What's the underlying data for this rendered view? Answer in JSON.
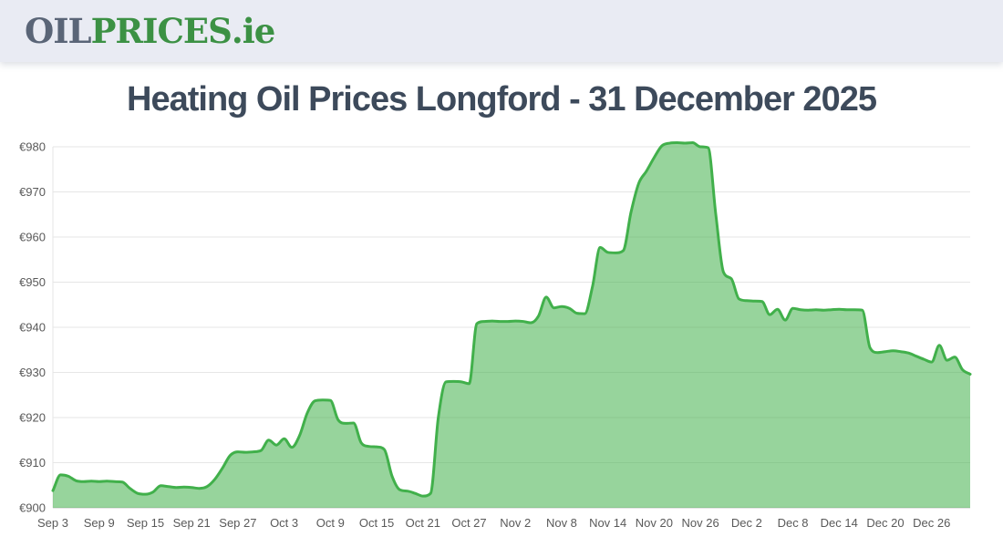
{
  "header": {
    "logo_prefix": "OIL",
    "logo_main": "PRICES",
    "logo_suffix": ".ie"
  },
  "title": "Heating Oil Prices Longford - 31 December 2025",
  "colors": {
    "header_bg": "#e9ebf3",
    "logo_gray": "#5a6577",
    "logo_green": "#3c9144",
    "title": "#3d4a5b",
    "line": "#41b04b",
    "fill": "rgba(65,176,75,0.55)",
    "grid": "#e6e6e6",
    "axis": "#c9c9c9",
    "tick_label": "#595959"
  },
  "chart_data": {
    "type": "area",
    "title": "Heating Oil Prices Longford - 31 December 2025",
    "currency": "€",
    "xlabel": "",
    "ylabel": "",
    "ylim": [
      900,
      980
    ],
    "y_ticks": [
      900,
      910,
      920,
      930,
      940,
      950,
      960,
      970,
      980
    ],
    "x_tick_every_days": 6,
    "grid": true,
    "legend": "none",
    "x": [
      "Sep 3",
      "Sep 4",
      "Sep 5",
      "Sep 6",
      "Sep 7",
      "Sep 8",
      "Sep 9",
      "Sep 10",
      "Sep 11",
      "Sep 12",
      "Sep 13",
      "Sep 14",
      "Sep 15",
      "Sep 16",
      "Sep 17",
      "Sep 18",
      "Sep 19",
      "Sep 20",
      "Sep 21",
      "Sep 22",
      "Sep 23",
      "Sep 24",
      "Sep 25",
      "Sep 26",
      "Sep 27",
      "Sep 28",
      "Sep 29",
      "Sep 30",
      "Oct 1",
      "Oct 2",
      "Oct 3",
      "Oct 4",
      "Oct 5",
      "Oct 6",
      "Oct 7",
      "Oct 8",
      "Oct 9",
      "Oct 10",
      "Oct 11",
      "Oct 12",
      "Oct 13",
      "Oct 14",
      "Oct 15",
      "Oct 16",
      "Oct 17",
      "Oct 18",
      "Oct 19",
      "Oct 20",
      "Oct 21",
      "Oct 22",
      "Oct 23",
      "Oct 24",
      "Oct 25",
      "Oct 26",
      "Oct 27",
      "Oct 28",
      "Oct 29",
      "Oct 30",
      "Oct 31",
      "Nov 1",
      "Nov 2",
      "Nov 3",
      "Nov 4",
      "Nov 5",
      "Nov 6",
      "Nov 7",
      "Nov 8",
      "Nov 9",
      "Nov 10",
      "Nov 11",
      "Nov 12",
      "Nov 13",
      "Nov 14",
      "Nov 15",
      "Nov 16",
      "Nov 17",
      "Nov 18",
      "Nov 19",
      "Nov 20",
      "Nov 21",
      "Nov 22",
      "Nov 23",
      "Nov 24",
      "Nov 25",
      "Nov 26",
      "Nov 27",
      "Nov 28",
      "Nov 29",
      "Nov 30",
      "Dec 1",
      "Dec 2",
      "Dec 3",
      "Dec 4",
      "Dec 5",
      "Dec 6",
      "Dec 7",
      "Dec 8",
      "Dec 9",
      "Dec 10",
      "Dec 11",
      "Dec 12",
      "Dec 13",
      "Dec 14",
      "Dec 15",
      "Dec 16",
      "Dec 17",
      "Dec 18",
      "Dec 19",
      "Dec 20",
      "Dec 21",
      "Dec 22",
      "Dec 23",
      "Dec 24",
      "Dec 25",
      "Dec 26",
      "Dec 27",
      "Dec 28",
      "Dec 29",
      "Dec 30",
      "Dec 31"
    ],
    "values": [
      903.8,
      907.3,
      907.0,
      906.0,
      905.8,
      905.9,
      905.8,
      905.9,
      905.8,
      905.7,
      904.3,
      903.2,
      903.0,
      903.5,
      904.9,
      904.7,
      904.5,
      904.6,
      904.5,
      904.3,
      904.7,
      906.3,
      908.8,
      911.6,
      912.4,
      912.3,
      912.4,
      912.7,
      915.0,
      913.9,
      915.3,
      913.4,
      916.0,
      921.0,
      923.7,
      923.9,
      923.8,
      919.5,
      918.7,
      918.8,
      914.4,
      913.6,
      913.5,
      912.9,
      907.0,
      904.0,
      903.7,
      903.2,
      902.6,
      903.2,
      920.0,
      927.9,
      928.0,
      927.9,
      927.5,
      940.8,
      941.3,
      941.4,
      941.3,
      941.3,
      941.4,
      941.3,
      941.0,
      942.5,
      946.7,
      944.3,
      944.6,
      944.2,
      943.1,
      943.0,
      949.0,
      957.7,
      956.6,
      956.5,
      957.0,
      965.5,
      971.9,
      974.6,
      977.6,
      980.2,
      980.8,
      980.9,
      980.8,
      980.9,
      980.0,
      979.8,
      965.0,
      952.2,
      950.8,
      946.3,
      945.9,
      945.8,
      945.7,
      942.8,
      944.0,
      941.6,
      944.2,
      943.9,
      943.8,
      943.9,
      943.8,
      943.9,
      944.0,
      943.9,
      943.9,
      943.8,
      935.5,
      934.4,
      934.6,
      934.8,
      934.6,
      934.3,
      933.6,
      932.9,
      932.3,
      936.0,
      932.7,
      933.4,
      930.6,
      929.6
    ]
  }
}
